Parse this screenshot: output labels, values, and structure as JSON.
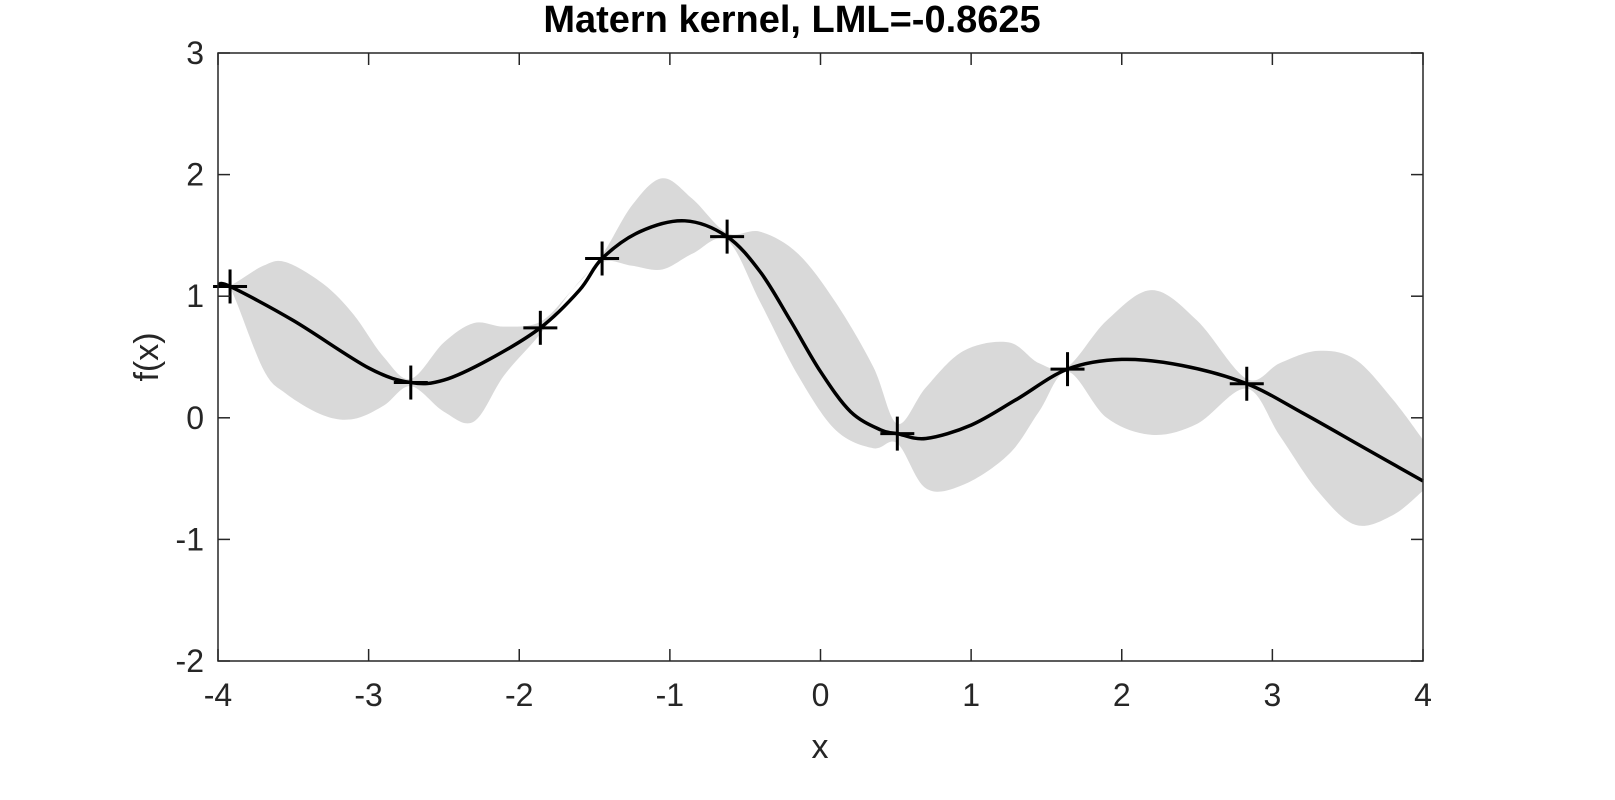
{
  "chart_data": {
    "type": "line",
    "title": "Matern kernel, LML=-0.8625",
    "xlabel": "x",
    "ylabel": "f(x)",
    "xlim": [
      -4,
      4
    ],
    "ylim": [
      -2,
      3
    ],
    "xticks": [
      -4,
      -3,
      -2,
      -1,
      0,
      1,
      2,
      3,
      4
    ],
    "yticks": [
      -2,
      -1,
      0,
      1,
      2,
      3
    ],
    "xtick_labels": [
      "-4",
      "-3",
      "-2",
      "-1",
      "0",
      "1",
      "2",
      "3",
      "4"
    ],
    "ytick_labels": [
      "-2",
      "-1",
      "0",
      "1",
      "2",
      "3"
    ],
    "grid": false,
    "colors": {
      "mean": "#000000",
      "band": "#d9d9d9",
      "axes": "#262626",
      "markers": "#000000"
    },
    "observations": {
      "x": [
        -3.92,
        -2.72,
        -1.86,
        -1.45,
        -0.62,
        0.51,
        1.64,
        2.83
      ],
      "y": [
        1.08,
        0.29,
        0.74,
        1.31,
        1.49,
        -0.13,
        0.4,
        0.28
      ]
    },
    "mean": {
      "x": [
        -4.0,
        -3.92,
        -3.5,
        -3.0,
        -2.72,
        -2.5,
        -2.2,
        -1.86,
        -1.6,
        -1.45,
        -1.2,
        -0.9,
        -0.62,
        -0.4,
        -0.2,
        0.0,
        0.2,
        0.4,
        0.51,
        0.7,
        1.0,
        1.3,
        1.64,
        2.0,
        2.4,
        2.83,
        3.2,
        3.6,
        4.0
      ],
      "y": [
        1.09,
        1.08,
        0.8,
        0.41,
        0.29,
        0.31,
        0.48,
        0.74,
        1.05,
        1.31,
        1.53,
        1.62,
        1.49,
        1.2,
        0.8,
        0.38,
        0.05,
        -0.1,
        -0.13,
        -0.17,
        -0.06,
        0.15,
        0.4,
        0.48,
        0.43,
        0.28,
        0.04,
        -0.24,
        -0.52
      ]
    },
    "band": {
      "x": [
        -4.0,
        -3.92,
        -3.7,
        -3.55,
        -3.3,
        -3.1,
        -2.9,
        -2.72,
        -2.5,
        -2.3,
        -2.1,
        -1.86,
        -1.65,
        -1.45,
        -1.25,
        -1.05,
        -0.85,
        -0.62,
        -0.4,
        -0.15,
        0.1,
        0.35,
        0.51,
        0.7,
        0.95,
        1.25,
        1.45,
        1.64,
        1.9,
        2.2,
        2.5,
        2.83,
        3.05,
        3.3,
        3.55,
        3.8,
        4.0
      ],
      "upper": [
        1.13,
        1.09,
        1.25,
        1.28,
        1.1,
        0.85,
        0.5,
        0.32,
        0.62,
        0.78,
        0.75,
        0.79,
        1.05,
        1.34,
        1.75,
        1.97,
        1.8,
        1.52,
        1.53,
        1.35,
        0.95,
        0.42,
        -0.05,
        0.25,
        0.55,
        0.62,
        0.45,
        0.42,
        0.8,
        1.05,
        0.8,
        0.32,
        0.45,
        0.55,
        0.48,
        0.15,
        -0.18
      ],
      "lower": [
        1.05,
        1.07,
        0.4,
        0.2,
        0.02,
        -0.01,
        0.1,
        0.26,
        0.05,
        -0.03,
        0.35,
        0.69,
        1.05,
        1.28,
        1.25,
        1.22,
        1.35,
        1.46,
        0.95,
        0.35,
        -0.1,
        -0.25,
        -0.21,
        -0.58,
        -0.55,
        -0.3,
        0.05,
        0.38,
        0.0,
        -0.14,
        -0.05,
        0.24,
        -0.15,
        -0.6,
        -0.88,
        -0.8,
        -0.6
      ]
    }
  }
}
